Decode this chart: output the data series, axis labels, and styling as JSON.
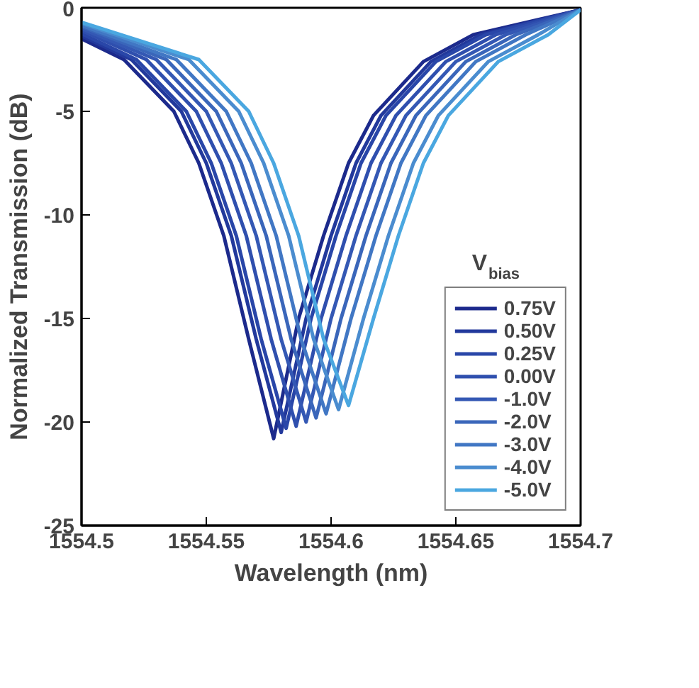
{
  "chart_data": {
    "type": "line",
    "xlabel": "Wavelength (nm)",
    "ylabel": "Normalized Transmission (dB)",
    "legend_title": "V$_{bias}$",
    "xlim": [
      1554.5,
      1554.7
    ],
    "ylim": [
      -25,
      0
    ],
    "xticks": [
      1554.5,
      1554.55,
      1554.6,
      1554.65,
      1554.7
    ],
    "yticks": [
      -25,
      -20,
      -15,
      -10,
      -5,
      0
    ],
    "grid": false,
    "legend": "bottom right",
    "marker": "none",
    "line_style": "solid",
    "series": [
      {
        "name": "0.75V",
        "color": "#1c2a8c",
        "x": [
          1554.5,
          1554.517,
          1554.537,
          1554.547,
          1554.557,
          1554.567,
          1554.577,
          1554.587,
          1554.597,
          1554.607,
          1554.617,
          1554.637,
          1554.657,
          1554.7
        ],
        "values": [
          -1.5,
          -2.5,
          -5,
          -7.5,
          -11,
          -16,
          -20.8,
          -15,
          -11,
          -7.5,
          -5.2,
          -2.6,
          -1.3,
          -0.1
        ]
      },
      {
        "name": "0.50V",
        "color": "#22399c",
        "x": [
          1554.5,
          1554.52,
          1554.54,
          1554.55,
          1554.56,
          1554.57,
          1554.58,
          1554.59,
          1554.6,
          1554.61,
          1554.62,
          1554.64,
          1554.66,
          1554.7
        ],
        "values": [
          -1.35,
          -2.5,
          -5,
          -7.5,
          -11,
          -16,
          -20.5,
          -15,
          -11,
          -7.5,
          -5.2,
          -2.6,
          -1.3,
          -0.1
        ]
      },
      {
        "name": "0.25V",
        "color": "#2946a8",
        "x": [
          1554.5,
          1554.522,
          1554.542,
          1554.552,
          1554.562,
          1554.572,
          1554.582,
          1554.592,
          1554.602,
          1554.612,
          1554.622,
          1554.642,
          1554.662,
          1554.7
        ],
        "values": [
          -1.25,
          -2.5,
          -5,
          -7.5,
          -11,
          -16,
          -20.3,
          -15,
          -11,
          -7.5,
          -5.2,
          -2.6,
          -1.3,
          -0.1
        ]
      },
      {
        "name": "0.00V",
        "color": "#2f4fae",
        "x": [
          1554.5,
          1554.526,
          1554.546,
          1554.556,
          1554.566,
          1554.576,
          1554.586,
          1554.596,
          1554.606,
          1554.616,
          1554.626,
          1554.646,
          1554.666,
          1554.7
        ],
        "values": [
          -1.1,
          -2.5,
          -5,
          -7.5,
          -11,
          -16,
          -20.2,
          -15,
          -11,
          -7.5,
          -5.2,
          -2.6,
          -1.3,
          -0.1
        ]
      },
      {
        "name": "-1.0V",
        "color": "#3458b4",
        "x": [
          1554.5,
          1554.53,
          1554.55,
          1554.56,
          1554.57,
          1554.58,
          1554.59,
          1554.6,
          1554.61,
          1554.62,
          1554.63,
          1554.65,
          1554.67,
          1554.7
        ],
        "values": [
          -1.0,
          -2.5,
          -5,
          -7.5,
          -11,
          -16,
          -20.0,
          -15,
          -11,
          -7.5,
          -5.2,
          -2.6,
          -1.3,
          -0.1
        ]
      },
      {
        "name": "-2.0V",
        "color": "#3a66ba",
        "x": [
          1554.5,
          1554.534,
          1554.554,
          1554.564,
          1554.574,
          1554.584,
          1554.594,
          1554.604,
          1554.614,
          1554.624,
          1554.634,
          1554.654,
          1554.674,
          1554.7
        ],
        "values": [
          -0.9,
          -2.5,
          -5,
          -7.5,
          -11,
          -16,
          -19.8,
          -15,
          -11,
          -7.5,
          -5.2,
          -2.6,
          -1.3,
          -0.1
        ]
      },
      {
        "name": "-3.0V",
        "color": "#4177c4",
        "x": [
          1554.5,
          1554.538,
          1554.558,
          1554.568,
          1554.578,
          1554.588,
          1554.598,
          1554.608,
          1554.618,
          1554.628,
          1554.638,
          1554.658,
          1554.678,
          1554.7
        ],
        "values": [
          -0.85,
          -2.5,
          -5,
          -7.5,
          -11,
          -16,
          -19.6,
          -15,
          -11,
          -7.5,
          -5.2,
          -2.6,
          -1.3,
          -0.1
        ]
      },
      {
        "name": "-4.0V",
        "color": "#4a8ccf",
        "x": [
          1554.5,
          1554.543,
          1554.563,
          1554.573,
          1554.583,
          1554.593,
          1554.603,
          1554.613,
          1554.623,
          1554.633,
          1554.643,
          1554.663,
          1554.683,
          1554.7
        ],
        "values": [
          -0.75,
          -2.5,
          -5,
          -7.5,
          -11,
          -16,
          -19.4,
          -15,
          -11,
          -7.5,
          -5.2,
          -2.6,
          -1.3,
          -0.1
        ]
      },
      {
        "name": "-5.0V",
        "color": "#4aa7e0",
        "x": [
          1554.5,
          1554.547,
          1554.567,
          1554.577,
          1554.587,
          1554.597,
          1554.607,
          1554.617,
          1554.627,
          1554.637,
          1554.647,
          1554.667,
          1554.687,
          1554.7
        ],
        "values": [
          -0.7,
          -2.5,
          -5,
          -7.5,
          -11,
          -16,
          -19.2,
          -15,
          -11,
          -7.5,
          -5.2,
          -2.6,
          -1.3,
          -0.1
        ]
      }
    ]
  }
}
